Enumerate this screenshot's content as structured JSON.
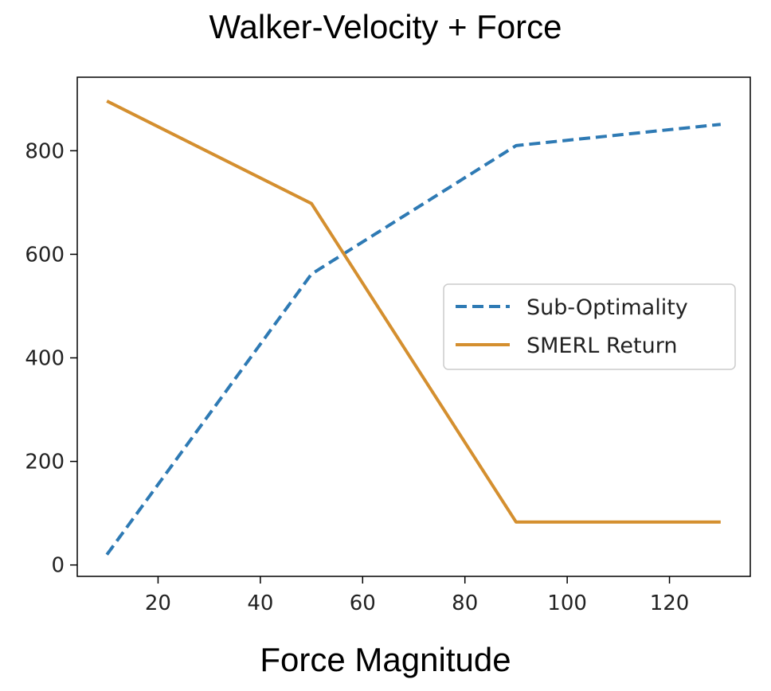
{
  "chart_data": {
    "type": "line",
    "title": "Walker-Velocity + Force",
    "xlabel": "Force Magnitude",
    "ylabel": "",
    "xlim": [
      4.2,
      135.8
    ],
    "ylim": [
      -22,
      942
    ],
    "xticks": [
      20,
      40,
      60,
      80,
      100,
      120
    ],
    "yticks": [
      0,
      200,
      400,
      600,
      800
    ],
    "x": [
      10,
      50,
      90,
      130
    ],
    "series": [
      {
        "name": "Sub-Optimality",
        "values": [
          20,
          562,
          810,
          851
        ],
        "style": "dashed",
        "color": "#2e7ab4"
      },
      {
        "name": "SMERL Return",
        "values": [
          896,
          698,
          83,
          83
        ],
        "style": "solid",
        "color": "#d48f2f"
      }
    ],
    "legend_position": "center-right",
    "grid": false
  }
}
